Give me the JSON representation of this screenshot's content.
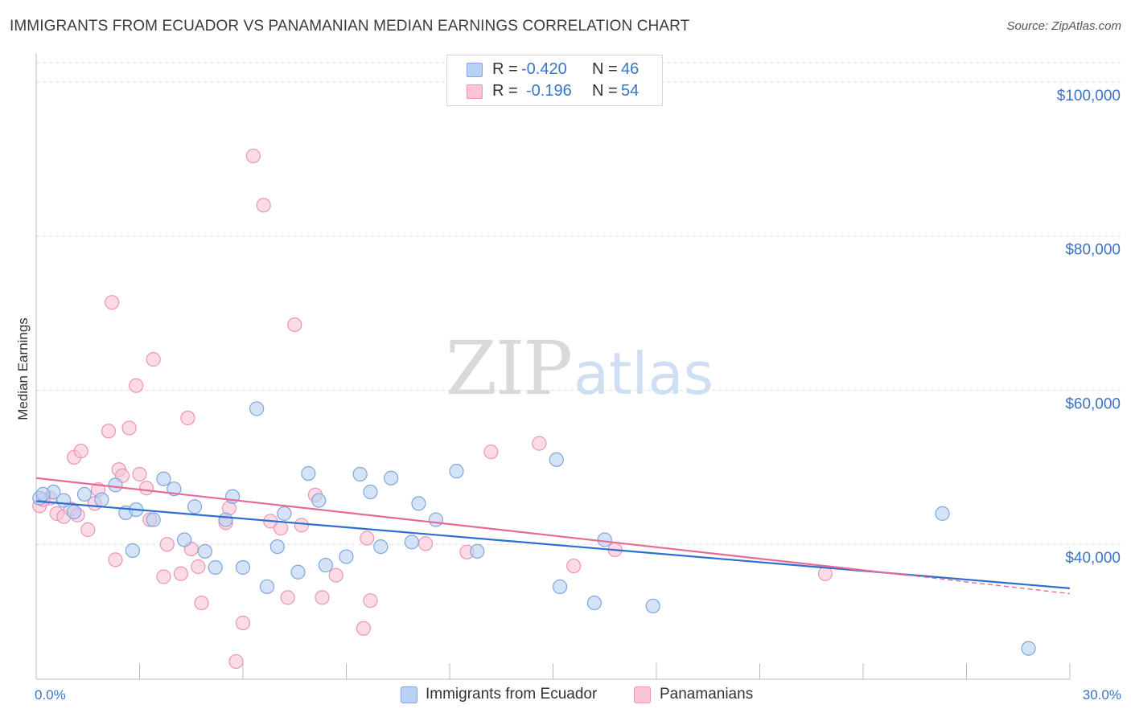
{
  "header": {
    "title": "IMMIGRANTS FROM ECUADOR VS PANAMANIAN MEDIAN EARNINGS CORRELATION CHART",
    "source": "Source: ZipAtlas.com"
  },
  "watermark": {
    "zip": "ZIP",
    "atlas": "atlas"
  },
  "legend": {
    "rows": [
      {
        "r_label": "R =",
        "r_value": "-0.420",
        "n_label": "N =",
        "n_value": "46"
      },
      {
        "r_label": "R =",
        "r_value": "-0.196",
        "n_label": "N =",
        "n_value": "54"
      }
    ]
  },
  "bottom_legend": {
    "items": [
      {
        "label": "Immigrants from Ecuador"
      },
      {
        "label": "Panamanians"
      }
    ]
  },
  "colors": {
    "blue_fill": "#b9d1f2",
    "blue_stroke": "#7fa6df",
    "blue_line": "#2c6fd1",
    "pink_fill": "#f8c4d6",
    "pink_stroke": "#ee94b4",
    "pink_line": "#e76a98",
    "grid": "#dddddd",
    "tick_text": "#3a74c9"
  },
  "chart_data": {
    "type": "scatter",
    "title": "IMMIGRANTS FROM ECUADOR VS PANAMANIAN MEDIAN EARNINGS CORRELATION CHART",
    "xlabel": "",
    "ylabel": "Median Earnings",
    "xlim": [
      0,
      30
    ],
    "ylim": [
      22500,
      102500
    ],
    "x_tick_labels": [
      "0.0%",
      "30.0%"
    ],
    "y_ticks": [
      {
        "value": 40000,
        "label": "$40,000"
      },
      {
        "value": 60000,
        "label": "$60,000"
      },
      {
        "value": 80000,
        "label": "$80,000"
      },
      {
        "value": 100000,
        "label": "$100,000"
      }
    ],
    "grid": true,
    "legend_position": "top-center",
    "series": [
      {
        "name": "Immigrants from Ecuador",
        "color": "#b9d1f2",
        "points": [
          [
            0.1,
            46000
          ],
          [
            0.5,
            46800
          ],
          [
            0.8,
            45700
          ],
          [
            1.1,
            44200
          ],
          [
            1.4,
            46500
          ],
          [
            1.9,
            45800
          ],
          [
            2.3,
            47700
          ],
          [
            2.6,
            44100
          ],
          [
            2.8,
            39200
          ],
          [
            2.9,
            44500
          ],
          [
            3.4,
            43200
          ],
          [
            3.7,
            48500
          ],
          [
            4.0,
            47200
          ],
          [
            4.3,
            40600
          ],
          [
            4.6,
            44900
          ],
          [
            4.9,
            39100
          ],
          [
            5.2,
            37000
          ],
          [
            5.5,
            43200
          ],
          [
            5.7,
            46200
          ],
          [
            6.0,
            37000
          ],
          [
            6.4,
            57600
          ],
          [
            6.7,
            34500
          ],
          [
            7.0,
            39700
          ],
          [
            7.2,
            44000
          ],
          [
            7.6,
            36400
          ],
          [
            7.9,
            49200
          ],
          [
            8.2,
            45700
          ],
          [
            8.4,
            37300
          ],
          [
            9.0,
            38400
          ],
          [
            9.4,
            49100
          ],
          [
            9.7,
            46800
          ],
          [
            10.0,
            39700
          ],
          [
            10.3,
            48600
          ],
          [
            10.9,
            40300
          ],
          [
            11.1,
            45300
          ],
          [
            11.6,
            43200
          ],
          [
            12.2,
            49500
          ],
          [
            12.8,
            39100
          ],
          [
            15.1,
            51000
          ],
          [
            15.2,
            34500
          ],
          [
            16.2,
            32400
          ],
          [
            16.5,
            40600
          ],
          [
            17.9,
            32000
          ],
          [
            26.3,
            44000
          ],
          [
            28.8,
            26500
          ],
          [
            0.2,
            46500
          ]
        ]
      },
      {
        "name": "Panamanians",
        "color": "#f8c4d6",
        "points": [
          [
            0.1,
            45000
          ],
          [
            0.4,
            46000
          ],
          [
            0.6,
            44000
          ],
          [
            0.8,
            43600
          ],
          [
            1.0,
            44600
          ],
          [
            1.1,
            51300
          ],
          [
            1.3,
            52100
          ],
          [
            1.5,
            41900
          ],
          [
            1.7,
            45300
          ],
          [
            1.8,
            47100
          ],
          [
            2.1,
            54700
          ],
          [
            2.2,
            71400
          ],
          [
            2.3,
            38000
          ],
          [
            2.4,
            49700
          ],
          [
            2.5,
            48900
          ],
          [
            2.7,
            55100
          ],
          [
            2.9,
            60600
          ],
          [
            3.2,
            47300
          ],
          [
            3.3,
            43200
          ],
          [
            3.4,
            64000
          ],
          [
            3.7,
            35800
          ],
          [
            3.8,
            40000
          ],
          [
            4.2,
            36200
          ],
          [
            4.4,
            56400
          ],
          [
            4.5,
            39400
          ],
          [
            4.7,
            37100
          ],
          [
            4.8,
            32400
          ],
          [
            5.5,
            42800
          ],
          [
            5.6,
            44700
          ],
          [
            5.8,
            24800
          ],
          [
            6.0,
            29800
          ],
          [
            6.3,
            90400
          ],
          [
            6.6,
            84000
          ],
          [
            6.8,
            43000
          ],
          [
            7.1,
            42100
          ],
          [
            7.3,
            33100
          ],
          [
            7.5,
            68500
          ],
          [
            7.7,
            42500
          ],
          [
            8.1,
            46400
          ],
          [
            8.3,
            33100
          ],
          [
            8.7,
            36000
          ],
          [
            9.5,
            29100
          ],
          [
            9.6,
            40800
          ],
          [
            9.7,
            32700
          ],
          [
            11.3,
            40100
          ],
          [
            12.5,
            39000
          ],
          [
            13.2,
            52000
          ],
          [
            14.6,
            53100
          ],
          [
            15.6,
            37200
          ],
          [
            16.8,
            39300
          ],
          [
            22.9,
            36200
          ],
          [
            0.2,
            45800
          ],
          [
            1.2,
            43800
          ],
          [
            3.0,
            49100
          ]
        ]
      }
    ],
    "trend_lines": [
      {
        "series": "Immigrants from Ecuador",
        "x": [
          0,
          30
        ],
        "y": [
          45600,
          34300
        ]
      },
      {
        "series": "Panamanians",
        "x": [
          0,
          25.3
        ],
        "y": [
          48600,
          36000
        ],
        "dashed_extension_to": [
          30,
          33600
        ]
      }
    ]
  }
}
